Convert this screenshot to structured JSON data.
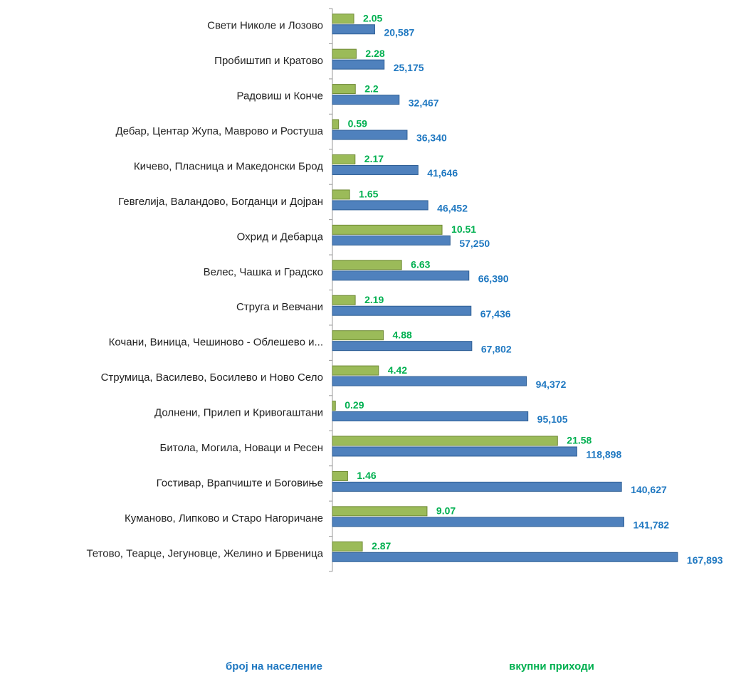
{
  "chart_data": {
    "type": "barh",
    "categories": [
      "Свети Николе и  Лозово",
      "Пробиштип и  Кратово",
      "Радовиш и  Конче",
      "Дебар,  Центар Жупа,  Маврово и Ростуша",
      "Кичево,  Пласница и  Македонски Брод",
      "Гевгелија, Валандово,  Богданци и  Дојран",
      "Охрид и  Дебарца",
      "Велес,  Чашка и  Градско",
      "Струга и  Вевчани",
      "Кочани,  Виница,  Чешиново - Облешево и...",
      "Струмица,  Василево,  Босилево и  Ново Село",
      "Долнени,  Прилеп и  Кривогаштани",
      "Битола,  Могила,  Новаци и  Ресен",
      "Гостивар,  Врапчиште и  Боговиње",
      "Куманово,  Липково и  Старо Нагоричане",
      "Тетово, Теарце,  Јегуновце,  Желино и  Брвеница"
    ],
    "series": [
      {
        "name": "број на население",
        "color": "#4f81bd",
        "label_color": "#1f78c1",
        "values": [
          20587,
          25175,
          32467,
          36340,
          41646,
          46452,
          57250,
          66390,
          67436,
          67802,
          94372,
          95105,
          118898,
          140627,
          141782,
          167893
        ],
        "value_labels": [
          "20,587",
          "25,175",
          "32,467",
          "36,340",
          "41,646",
          "46,452",
          "57,250",
          "66,390",
          "67,436",
          "67,802",
          "94,372",
          "95,105",
          "118,898",
          "140,627",
          "141,782",
          "167,893"
        ]
      },
      {
        "name": "вкупни приходи",
        "color": "#9bbb59",
        "label_color": "#00b050",
        "axis": "x2",
        "values": [
          2.05,
          2.28,
          2.2,
          0.59,
          2.17,
          1.65,
          10.51,
          6.63,
          2.19,
          4.88,
          4.42,
          0.29,
          21.58,
          1.46,
          9.07,
          2.87
        ]
      }
    ],
    "xlim": [
      0,
      170000
    ],
    "x2lim": [
      0,
      33.5
    ],
    "legend": "bottom"
  }
}
